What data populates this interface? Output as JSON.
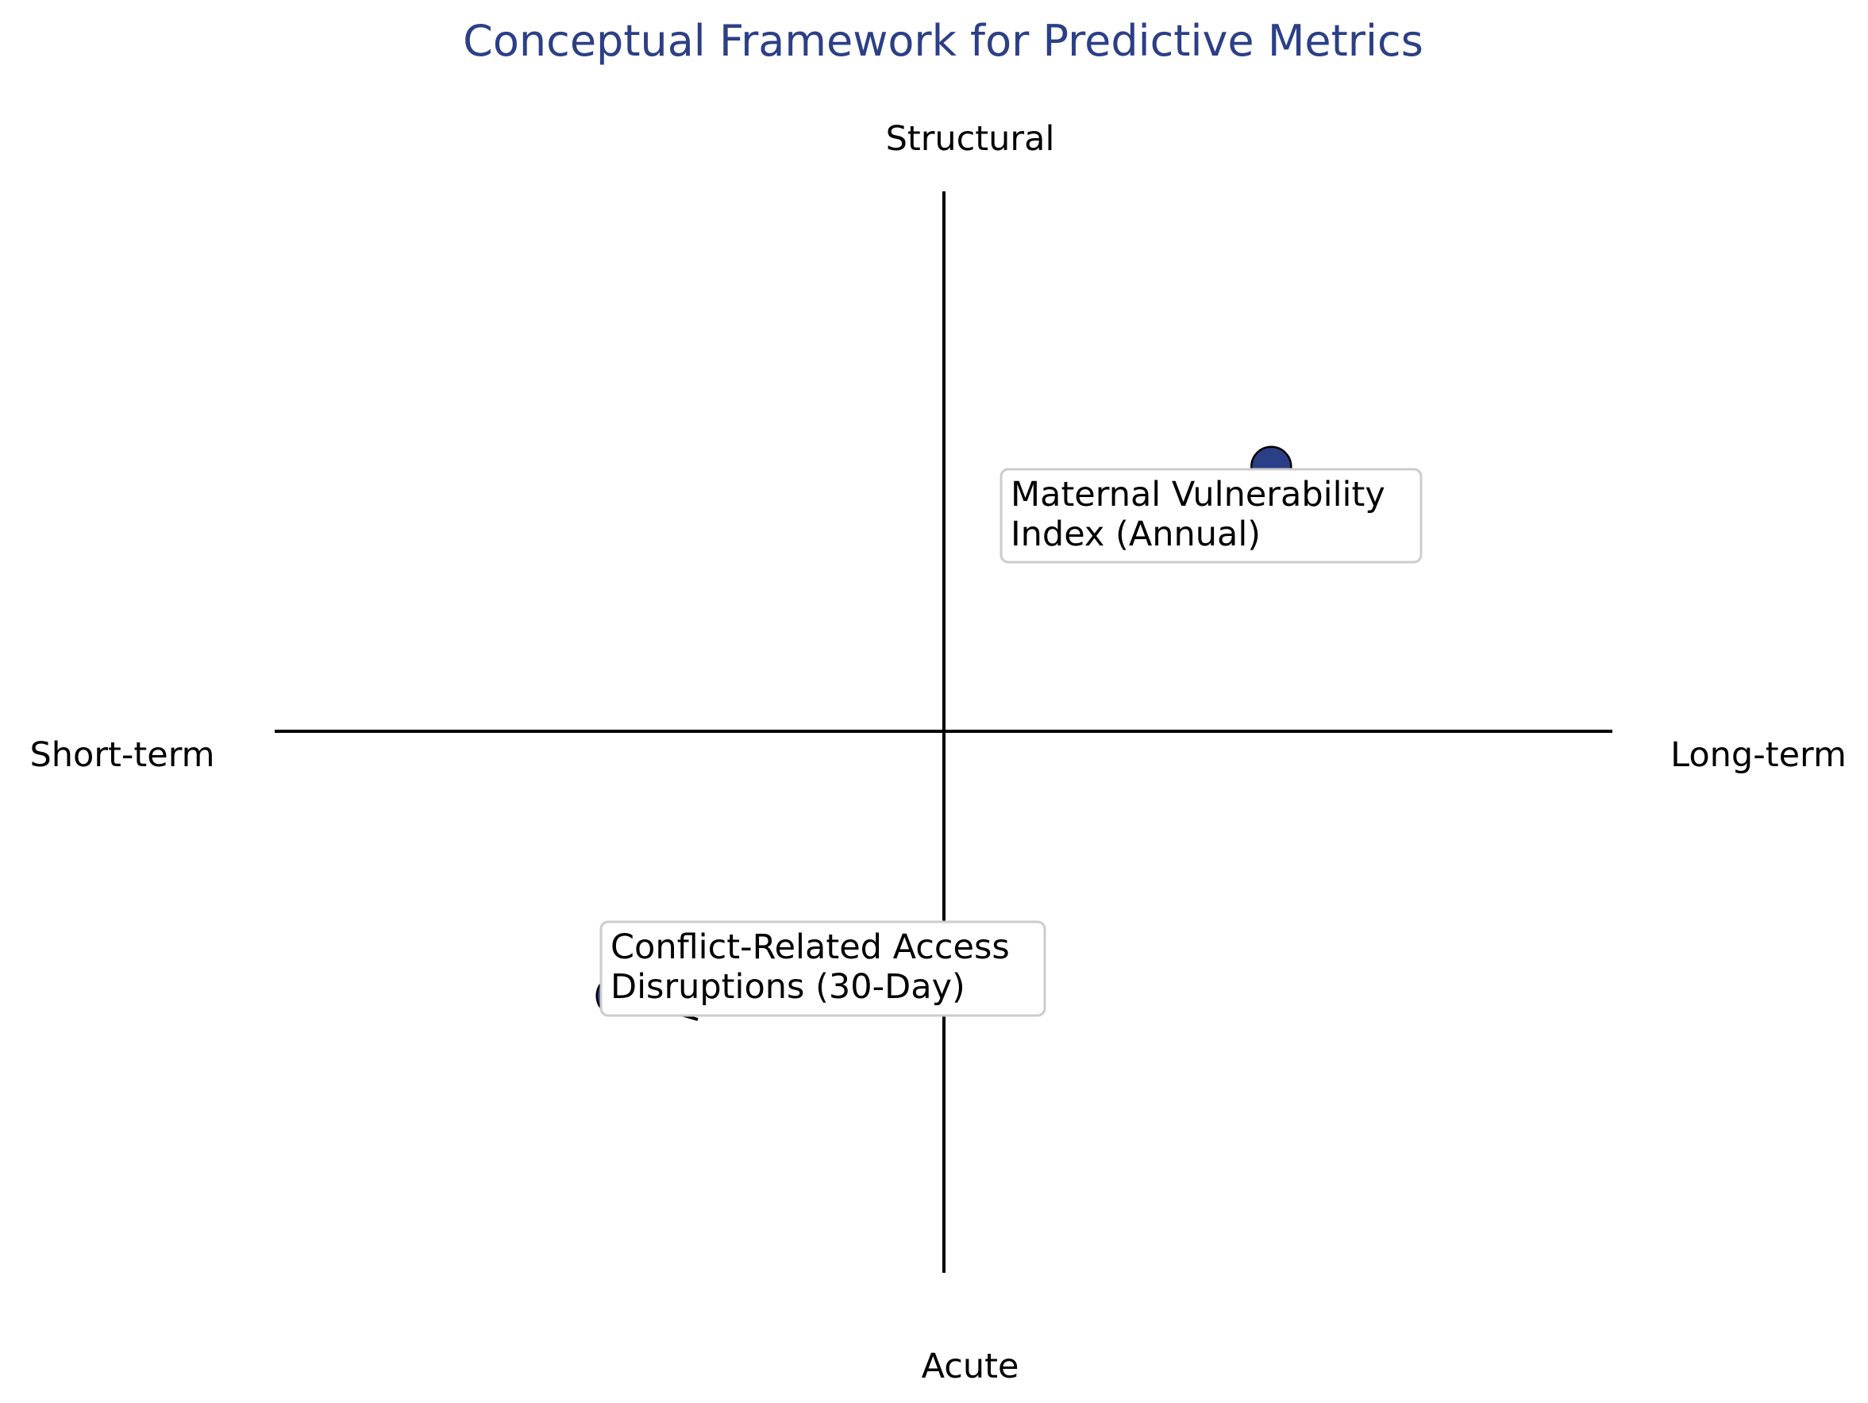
{
  "title": "Conceptual Framework for Predictive Metrics",
  "colors": {
    "title": "#2c3f86",
    "marker_fill": "#2a3f86",
    "marker_stroke": "#000000",
    "axis": "#000000",
    "callout_border": "#cccccc"
  },
  "axes": {
    "top_label": "Structural",
    "bottom_label": "Acute",
    "left_label": "Short-term",
    "right_label": "Long-term"
  },
  "chart_data": {
    "type": "scatter",
    "xlim": [
      -1,
      1
    ],
    "ylim": [
      -1,
      1
    ],
    "grid": false,
    "points": [
      {
        "x": 0.7,
        "y": 0.7,
        "label_lines": [
          "Maternal Vulnerability",
          "Index (Annual)"
        ]
      },
      {
        "x": -0.7,
        "y": -0.7,
        "label_lines": [
          "Conflict-Related Access",
          "Disruptions (30-Day)"
        ]
      }
    ]
  }
}
